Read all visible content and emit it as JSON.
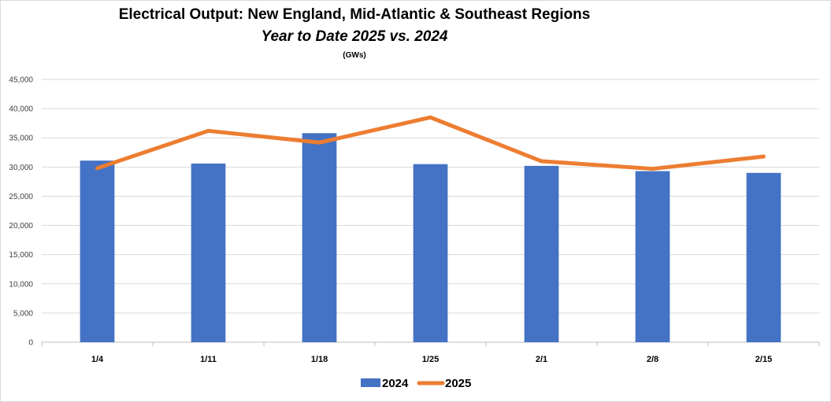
{
  "chart_data": {
    "type": "bar",
    "title": "Electrical Output:  New England, Mid-Atlantic & Southeast Regions",
    "subtitle": "Year to Date 2025 vs. 2024",
    "unit_label": "(GWs)",
    "categories": [
      "1/4",
      "1/11",
      "1/18",
      "1/25",
      "2/1",
      "2/8",
      "2/15"
    ],
    "series": [
      {
        "name": "2024",
        "type": "bar",
        "color": "#4472C4",
        "values": [
          31100,
          30600,
          35800,
          30500,
          30200,
          29300,
          29000
        ]
      },
      {
        "name": "2025",
        "type": "line",
        "color": "#ED7D31",
        "values": [
          29800,
          36200,
          34200,
          38500,
          31000,
          29700,
          31800
        ]
      }
    ],
    "ylim": [
      0,
      45000
    ],
    "yticks": [
      "0",
      "5,000",
      "10,000",
      "15,000",
      "20,000",
      "25,000",
      "30,000",
      "35,000",
      "40,000",
      "45,000"
    ],
    "ytick_values": [
      0,
      5000,
      10000,
      15000,
      20000,
      25000,
      30000,
      35000,
      40000,
      45000
    ],
    "grid": true,
    "legend_position": "bottom-center"
  }
}
